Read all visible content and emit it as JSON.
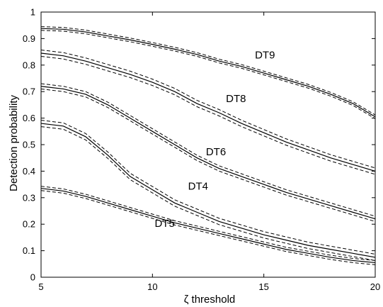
{
  "chart_data": {
    "type": "line",
    "xlabel": "ζ threshold",
    "ylabel": "Detection probability",
    "xlim": [
      5,
      20
    ],
    "ylim": [
      0,
      1
    ],
    "xticks": [
      5,
      10,
      15,
      20
    ],
    "yticks": [
      0,
      0.1,
      0.2,
      0.3,
      0.4,
      0.5,
      0.6,
      0.7,
      0.8,
      0.9,
      1
    ],
    "yticklabels": [
      "0",
      "0.1",
      "0.2",
      "0.3",
      "0.4",
      "0.5",
      "0.6",
      "0.7",
      "0.8",
      "0.9",
      "1"
    ],
    "grid": false,
    "x": [
      5,
      6,
      7,
      8,
      9,
      10,
      11,
      12,
      13,
      14,
      15,
      16,
      17,
      18,
      19,
      20
    ],
    "series": [
      {
        "name": "DT9",
        "values": [
          0.938,
          0.935,
          0.925,
          0.91,
          0.895,
          0.878,
          0.86,
          0.84,
          0.815,
          0.795,
          0.77,
          0.745,
          0.72,
          0.69,
          0.655,
          0.605
        ],
        "band": 0.007,
        "label_at": [
          14.6,
          0.825
        ]
      },
      {
        "name": "DT8",
        "values": [
          0.845,
          0.835,
          0.815,
          0.79,
          0.765,
          0.735,
          0.7,
          0.655,
          0.62,
          0.58,
          0.545,
          0.51,
          0.48,
          0.45,
          0.425,
          0.4
        ],
        "band": 0.012,
        "label_at": [
          13.3,
          0.66
        ]
      },
      {
        "name": "DT6",
        "values": [
          0.72,
          0.71,
          0.69,
          0.65,
          0.6,
          0.55,
          0.5,
          0.45,
          0.41,
          0.38,
          0.35,
          0.32,
          0.295,
          0.27,
          0.245,
          0.22
        ],
        "band": 0.01,
        "label_at": [
          12.4,
          0.46
        ]
      },
      {
        "name": "DT4",
        "values": [
          0.58,
          0.57,
          0.53,
          0.46,
          0.38,
          0.33,
          0.28,
          0.245,
          0.21,
          0.185,
          0.16,
          0.14,
          0.12,
          0.105,
          0.09,
          0.075
        ],
        "band": 0.012,
        "label_at": [
          11.6,
          0.33
        ]
      },
      {
        "name": "DT5",
        "values": [
          0.335,
          0.325,
          0.305,
          0.28,
          0.255,
          0.23,
          0.205,
          0.185,
          0.165,
          0.145,
          0.125,
          0.105,
          0.09,
          0.075,
          0.063,
          0.055
        ],
        "band": 0.008,
        "label_at": [
          10.1,
          0.19
        ]
      }
    ]
  }
}
